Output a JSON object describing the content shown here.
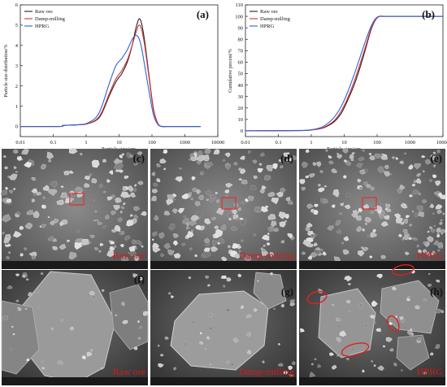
{
  "colors": {
    "raw_ore": "#222222",
    "damp_milling": "#d93030",
    "hprg": "#2f62d8",
    "panel_label": "#111111",
    "sem_caption": "#d81818"
  },
  "chart_data": [
    {
      "type": "line",
      "panel_label": "(a)",
      "xscale": "log",
      "xlim": [
        0.01,
        10000
      ],
      "x_ticks": [
        "0.01",
        "0.1",
        "1",
        "10",
        "100",
        "1000",
        "10000"
      ],
      "ylim": [
        -0.5,
        6
      ],
      "y_ticks": [
        "0",
        "1",
        "2",
        "3",
        "4",
        "5",
        "6"
      ],
      "xlabel": "Particle size/μm",
      "ylabel": "Particle size distribution/%",
      "legend": "top-left",
      "series": [
        {
          "name": "Raw ore",
          "x": [
            0.01,
            0.15,
            0.2,
            0.5,
            1,
            2,
            3,
            5,
            8,
            12,
            18,
            25,
            32,
            40,
            48,
            60,
            80,
            110,
            150,
            200,
            300,
            3000
          ],
          "y": [
            0,
            0,
            0.05,
            0.08,
            0.12,
            0.3,
            0.65,
            1.5,
            2.2,
            2.6,
            3.2,
            4.0,
            4.8,
            5.3,
            5.1,
            4.2,
            2.6,
            0.9,
            0.15,
            0,
            0,
            0
          ]
        },
        {
          "name": "Damp-milling",
          "x": [
            0.01,
            0.15,
            0.2,
            0.5,
            1,
            2,
            3,
            5,
            8,
            12,
            18,
            25,
            32,
            40,
            48,
            60,
            80,
            110,
            150,
            200,
            300,
            3000
          ],
          "y": [
            0,
            0,
            0.05,
            0.08,
            0.12,
            0.33,
            0.72,
            1.6,
            2.35,
            2.75,
            3.3,
            4.0,
            4.6,
            5.0,
            4.8,
            4.0,
            2.5,
            0.85,
            0.15,
            0,
            0,
            0
          ]
        },
        {
          "name": "HPRG",
          "x": [
            0.01,
            0.15,
            0.2,
            0.5,
            1,
            2,
            3,
            5,
            8,
            12,
            18,
            25,
            32,
            40,
            48,
            60,
            80,
            110,
            150,
            200,
            300,
            3000
          ],
          "y": [
            0,
            0,
            0.05,
            0.08,
            0.14,
            0.45,
            1.0,
            2.1,
            3.0,
            3.35,
            3.8,
            4.3,
            4.5,
            4.35,
            3.9,
            3.0,
            1.8,
            0.6,
            0.1,
            0,
            0,
            0
          ]
        }
      ]
    },
    {
      "type": "line",
      "panel_label": "(b)",
      "xscale": "log",
      "xlim": [
        0.01,
        10000
      ],
      "x_ticks": [
        "0.01",
        "0.1",
        "1",
        "10",
        "100",
        "1000",
        "10000"
      ],
      "ylim": [
        -5,
        110
      ],
      "y_ticks": [
        "0",
        "10",
        "20",
        "30",
        "40",
        "50",
        "60",
        "70",
        "80",
        "90",
        "100",
        "110"
      ],
      "xlabel": "Particle size/μm",
      "ylabel": "Cumulative percent/%",
      "legend": "top-left",
      "series": [
        {
          "name": "Raw ore",
          "x": [
            0.01,
            0.5,
            1,
            2,
            3,
            5,
            8,
            12,
            20,
            30,
            45,
            65,
            90,
            120,
            200,
            10000
          ],
          "y": [
            0,
            0.3,
            0.8,
            2,
            4,
            8,
            15,
            25,
            40,
            55,
            72,
            88,
            97,
            100,
            100,
            100
          ]
        },
        {
          "name": "Damp-milling",
          "x": [
            0.01,
            0.5,
            1,
            2,
            3,
            5,
            8,
            12,
            20,
            30,
            45,
            65,
            90,
            120,
            200,
            10000
          ],
          "y": [
            0,
            0.3,
            0.8,
            2.2,
            4.5,
            9,
            17,
            27,
            43,
            58,
            74,
            89,
            97,
            100,
            100,
            100
          ]
        },
        {
          "name": "HPRG",
          "x": [
            0.01,
            0.5,
            1,
            2,
            3,
            5,
            8,
            12,
            20,
            30,
            45,
            65,
            90,
            120,
            200,
            10000
          ],
          "y": [
            0,
            0.4,
            1,
            3,
            6,
            12,
            21,
            32,
            49,
            64,
            79,
            91,
            98,
            100,
            100,
            100
          ]
        }
      ]
    }
  ],
  "sem_panels": [
    {
      "label": "(c)",
      "caption": "Raw ore"
    },
    {
      "label": "(d)",
      "caption": "Damp-milling"
    },
    {
      "label": "(e)",
      "caption": "HPRG"
    },
    {
      "label": "(f)",
      "caption": "Raw ore"
    },
    {
      "label": "(g)",
      "caption": "Damp-milling"
    },
    {
      "label": "(h)",
      "caption": "HPRG"
    }
  ]
}
